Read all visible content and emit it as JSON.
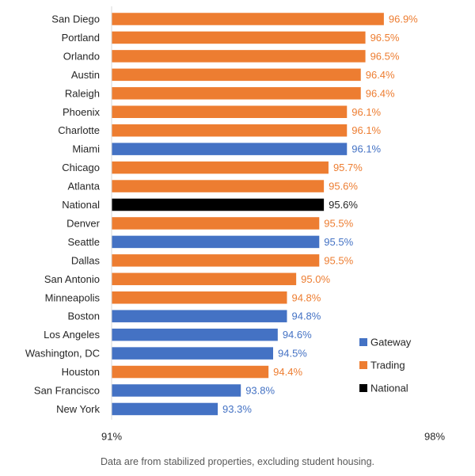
{
  "chart_data": {
    "type": "bar",
    "orientation": "horizontal",
    "categories": [
      "San Diego",
      "Portland",
      "Orlando",
      "Austin",
      "Raleigh",
      "Phoenix",
      "Charlotte",
      "Miami",
      "Chicago",
      "Atlanta",
      "National",
      "Denver",
      "Seattle",
      "Dallas",
      "San Antonio",
      "Minneapolis",
      "Boston",
      "Los Angeles",
      "Washington, DC",
      "Houston",
      "San Francisco",
      "New York"
    ],
    "values": [
      96.9,
      96.5,
      96.5,
      96.4,
      96.4,
      96.1,
      96.1,
      96.1,
      95.7,
      95.6,
      95.6,
      95.5,
      95.5,
      95.5,
      95.0,
      94.8,
      94.8,
      94.6,
      94.5,
      94.4,
      93.8,
      93.3
    ],
    "value_labels": [
      "96.9%",
      "96.5%",
      "96.5%",
      "96.4%",
      "96.4%",
      "96.1%",
      "96.1%",
      "96.1%",
      "95.7%",
      "95.6%",
      "95.6%",
      "95.5%",
      "95.5%",
      "95.5%",
      "95.0%",
      "94.8%",
      "94.8%",
      "94.6%",
      "94.5%",
      "94.4%",
      "93.8%",
      "93.3%"
    ],
    "groups": [
      "Trading",
      "Trading",
      "Trading",
      "Trading",
      "Trading",
      "Trading",
      "Trading",
      "Gateway",
      "Trading",
      "Trading",
      "National",
      "Trading",
      "Gateway",
      "Trading",
      "Trading",
      "Trading",
      "Gateway",
      "Gateway",
      "Gateway",
      "Trading",
      "Gateway",
      "Gateway"
    ],
    "xlim": [
      91,
      98
    ],
    "xtick_labels": [
      "91%",
      "98%"
    ],
    "grid": false,
    "legend": {
      "placement": "bottom-right",
      "entries": [
        {
          "name": "Gateway",
          "color": "#4472C4"
        },
        {
          "name": "Trading",
          "color": "#ED7D31"
        },
        {
          "name": "National",
          "color": "#000000"
        }
      ]
    },
    "group_colors": {
      "Gateway": "#4472C4",
      "Trading": "#ED7D31",
      "National": "#000000"
    },
    "label_colors": {
      "Gateway": "#4472C4",
      "Trading": "#ED7D31",
      "National": "#262626"
    }
  },
  "footnote": "Data are from stabilized properties, excluding student housing."
}
